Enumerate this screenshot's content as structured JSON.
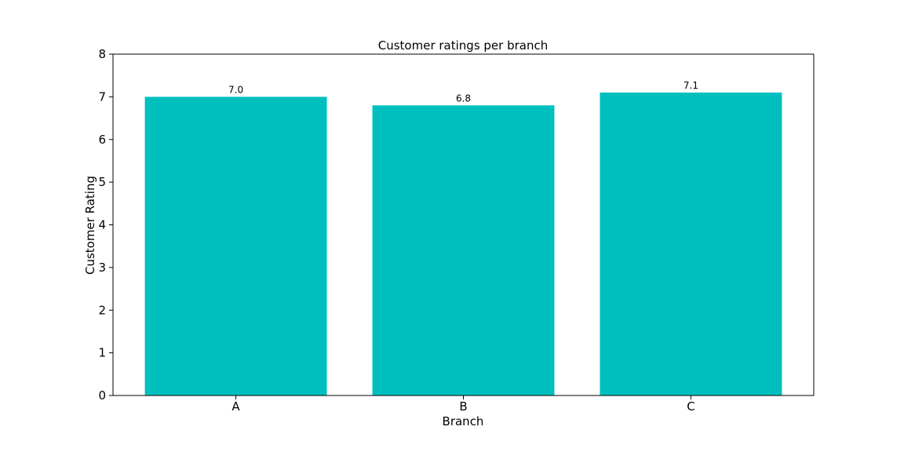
{
  "chart_data": {
    "type": "bar",
    "title": "Customer ratings per branch",
    "xlabel": "Branch",
    "ylabel": "Customer Rating",
    "categories": [
      "A",
      "B",
      "C"
    ],
    "values": [
      7.0,
      6.8,
      7.1
    ],
    "data_labels": [
      "7.0",
      "6.8",
      "7.1"
    ],
    "ylim": [
      0,
      8
    ],
    "yticks": [
      0,
      1,
      2,
      3,
      4,
      5,
      6,
      7,
      8
    ],
    "bar_color": "#00bfbf",
    "grid": false,
    "legend": "none"
  }
}
